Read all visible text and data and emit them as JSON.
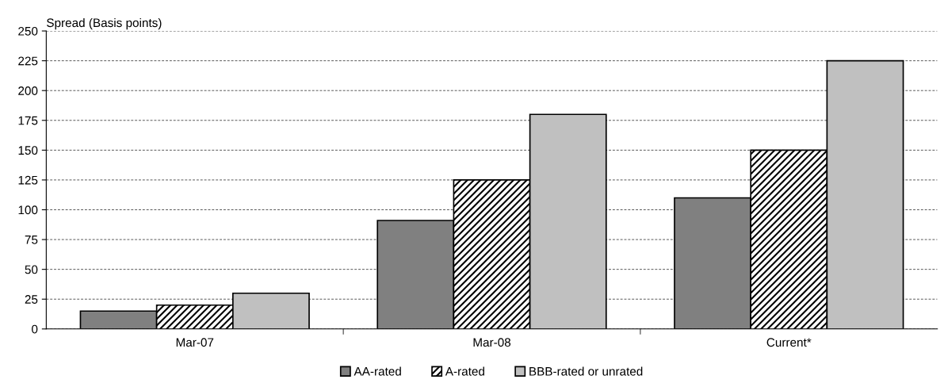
{
  "chart_data": {
    "type": "bar",
    "ylabel": "Spread (Basis points)",
    "categories": [
      "Mar-07",
      "Mar-08",
      "Current*"
    ],
    "series": [
      {
        "name": "AA-rated",
        "color": "#808080",
        "values": [
          15,
          91,
          110
        ]
      },
      {
        "name": "A-rated",
        "color": "#000000",
        "values": [
          20,
          125,
          150
        ]
      },
      {
        "name": "BBB-rated or unrated",
        "color": "#c0c0c0",
        "values": [
          30,
          180,
          225
        ]
      }
    ],
    "ylim": [
      0,
      250
    ],
    "yticks": [
      0,
      25,
      50,
      75,
      100,
      125,
      150,
      175,
      200,
      225,
      250
    ],
    "grid": "y",
    "legend": "bottom"
  }
}
